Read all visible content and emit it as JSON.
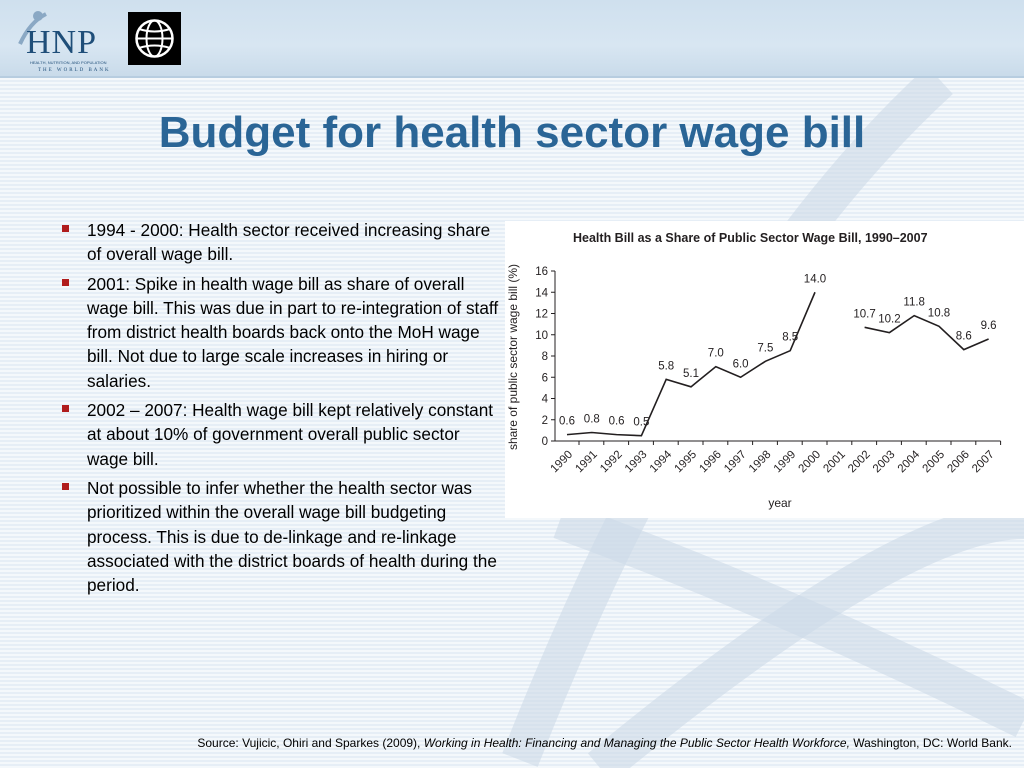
{
  "header": {
    "logo_text": "HNP",
    "logo_tagline": "HEALTH, NUTRITION, AND POPULATION",
    "logo_subtitle": "THE WORLD BANK"
  },
  "slide": {
    "title": "Budget for health sector wage bill",
    "bullets": [
      "1994 - 2000: Health sector received increasing share of overall wage bill.",
      "2001: Spike in health wage bill as share of overall wage bill. This was due in part to re-integration of staff from district health boards back onto the MoH wage bill. Not due to large scale increases in hiring or salaries.",
      "2002 – 2007: Health wage bill kept relatively constant at about 10% of government overall public sector wage bill.",
      "Not possible to infer whether the health sector was prioritized within the overall wage bill budgeting process. This is due to de-linkage and re-linkage associated with the district boards of health during the period."
    ],
    "source_prefix": "Source:  Vujicic, Ohiri and Sparkes (2009), ",
    "source_italic": "Working in Health: Financing and Managing the Public Sector Health Workforce,",
    "source_suffix": " Washington, DC: World Bank."
  },
  "chart_data": {
    "type": "line",
    "title": "Health Bill as a Share of Public Sector Wage Bill, 1990–2007",
    "xlabel": "year",
    "ylabel": "share of public sector wage bill (%)",
    "ylim": [
      0,
      16
    ],
    "yticks": [
      0,
      2,
      4,
      6,
      8,
      10,
      12,
      14,
      16
    ],
    "categories": [
      "1990",
      "1991",
      "1992",
      "1993",
      "1994",
      "1995",
      "1996",
      "1997",
      "1998",
      "1999",
      "2000",
      "2001",
      "2002",
      "2003",
      "2004",
      "2005",
      "2006",
      "2007"
    ],
    "series": [
      {
        "values": [
          0.6,
          0.8,
          0.6,
          0.5,
          5.8,
          5.1,
          7.0,
          6.0,
          7.5,
          8.5,
          14.0,
          null,
          10.7,
          10.2,
          11.8,
          10.8,
          8.6,
          9.6
        ],
        "labels": [
          "0.6",
          "0.8",
          "0.6",
          "0.5",
          "5.8",
          "5.1",
          "7.0",
          "6.0",
          "7.5",
          "8.5",
          "14.0",
          "",
          "10.7",
          "10.2",
          "11.8",
          "10.8",
          "8.6",
          "9.6"
        ]
      }
    ],
    "grid": false,
    "colors": {
      "line": "#231f20"
    }
  }
}
